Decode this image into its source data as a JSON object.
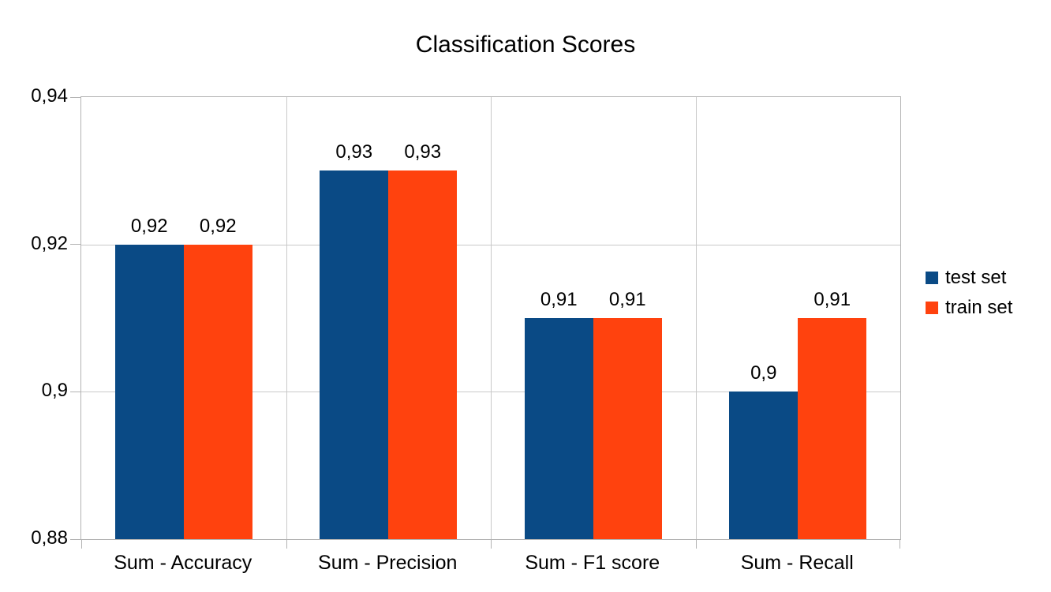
{
  "chart_data": {
    "type": "bar",
    "title": "Classification Scores",
    "categories": [
      "Sum - Accuracy",
      "Sum - Precision",
      "Sum - F1 score",
      "Sum - Recall"
    ],
    "series": [
      {
        "name": "test set",
        "color": "#0a4a85",
        "values": [
          0.92,
          0.93,
          0.91,
          0.9
        ],
        "labels": [
          "0,92",
          "0,93",
          "0,91",
          "0,9"
        ]
      },
      {
        "name": "train set",
        "color": "#ff420e",
        "values": [
          0.92,
          0.93,
          0.91,
          0.91
        ],
        "labels": [
          "0,92",
          "0,93",
          "0,91",
          "0,91"
        ]
      }
    ],
    "ylim": [
      0.88,
      0.94
    ],
    "yticks": [
      {
        "value": 0.94,
        "label": "0,94"
      },
      {
        "value": 0.92,
        "label": "0,92"
      },
      {
        "value": 0.9,
        "label": "0,9"
      },
      {
        "value": 0.88,
        "label": "0,88"
      }
    ],
    "grid": true,
    "legend_position": "right",
    "decimal_separator": ",",
    "colors": {
      "gridline": "#c9c9c9",
      "axis": "#b3b3b3",
      "text": "#000000",
      "background": "#ffffff"
    }
  }
}
